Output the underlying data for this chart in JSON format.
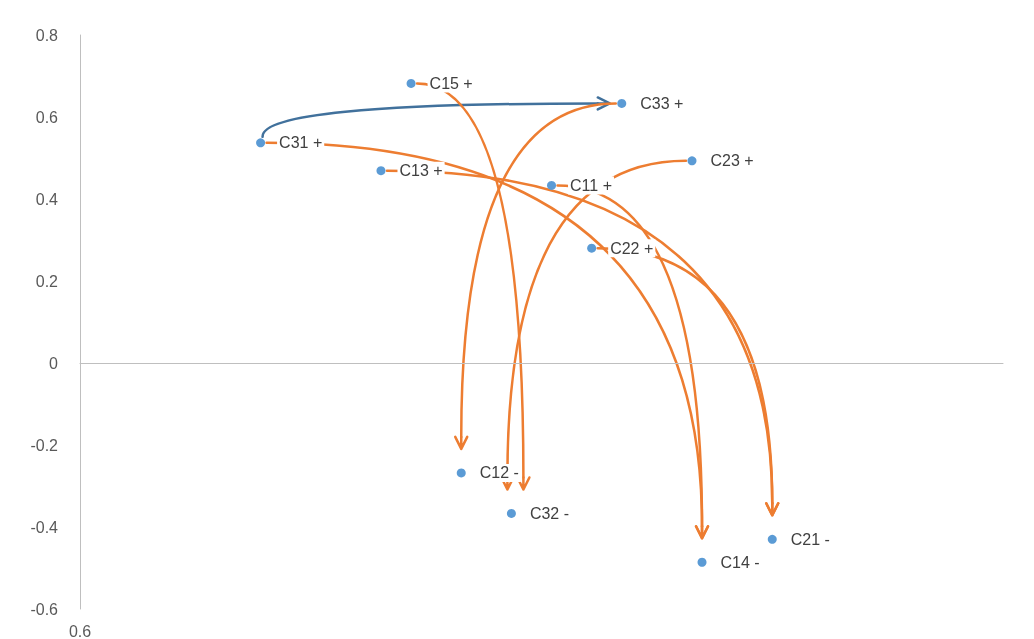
{
  "chart_data": {
    "type": "scatter",
    "categories": [
      "0.6",
      null,
      null,
      null,
      null,
      null,
      null,
      null,
      null,
      null,
      null,
      null,
      null,
      null,
      null,
      null,
      null,
      null,
      null,
      null,
      null,
      null,
      null,
      null,
      null,
      null,
      null,
      null,
      null,
      null,
      null,
      null,
      null,
      null,
      null,
      null,
      null,
      null,
      null,
      null,
      null,
      null,
      null,
      null,
      null,
      null,
      null,
      null,
      null,
      null,
      null,
      null,
      null,
      null,
      null,
      null,
      null,
      null,
      null,
      null,
      null,
      null,
      null,
      null,
      null,
      null,
      null,
      null,
      null,
      null,
      null,
      null,
      null,
      null,
      null,
      null,
      null,
      null,
      null,
      null,
      null,
      null,
      null,
      null,
      null,
      null,
      null,
      null,
      null,
      null,
      null,
      null,
      null
    ],
    "series": [
      {
        "color": "#5b9bd5",
        "values": [
          null,
          null,
          null,
          null,
          null,
          null,
          null,
          null,
          null,
          null,
          null,
          null,
          null,
          null,
          null,
          null,
          null,
          null,
          0.537,
          null,
          null,
          null,
          null,
          null,
          null,
          null,
          null,
          null,
          null,
          null,
          0.469,
          null,
          null,
          0.682,
          null,
          null,
          null,
          null,
          -0.268,
          null,
          null,
          null,
          null,
          -0.367,
          null,
          null,
          null,
          0.433,
          null,
          null,
          null,
          0.28,
          null,
          null,
          0.633,
          null,
          null,
          null,
          null,
          null,
          null,
          0.493,
          -0.486,
          null,
          null,
          null,
          null,
          null,
          null,
          -0.43,
          null,
          null,
          null,
          null,
          null,
          null,
          null,
          null,
          null,
          null,
          null,
          null,
          null,
          null,
          null,
          null,
          null,
          null,
          null,
          null,
          null,
          null,
          null
        ],
        "value_labels": [
          null,
          null,
          null,
          null,
          null,
          null,
          null,
          null,
          null,
          null,
          null,
          null,
          null,
          null,
          null,
          null,
          null,
          null,
          "C31 +",
          null,
          null,
          null,
          null,
          null,
          null,
          null,
          null,
          null,
          null,
          null,
          "C13 +",
          null,
          null,
          "C15 +",
          null,
          null,
          null,
          null,
          "C12 -",
          null,
          null,
          null,
          null,
          "C32 -",
          null,
          null,
          null,
          "C11 +",
          null,
          null,
          null,
          "C22 +",
          null,
          null,
          "C33 +",
          null,
          null,
          null,
          null,
          null,
          null,
          "C23 +",
          "C14 -",
          null,
          null,
          null,
          null,
          null,
          null,
          "C21 -",
          null,
          null,
          null,
          null,
          null,
          null,
          null,
          null,
          null,
          null,
          null,
          null,
          null,
          null,
          null,
          null,
          null,
          null,
          null,
          null,
          null,
          null,
          null
        ]
      }
    ],
    "ylim": [
      -0.6,
      0.8
    ],
    "yticks": [
      -0.6,
      -0.4,
      -0.2,
      0,
      0.2,
      0.4,
      0.6,
      0.8
    ],
    "marker": "circle"
  }
}
